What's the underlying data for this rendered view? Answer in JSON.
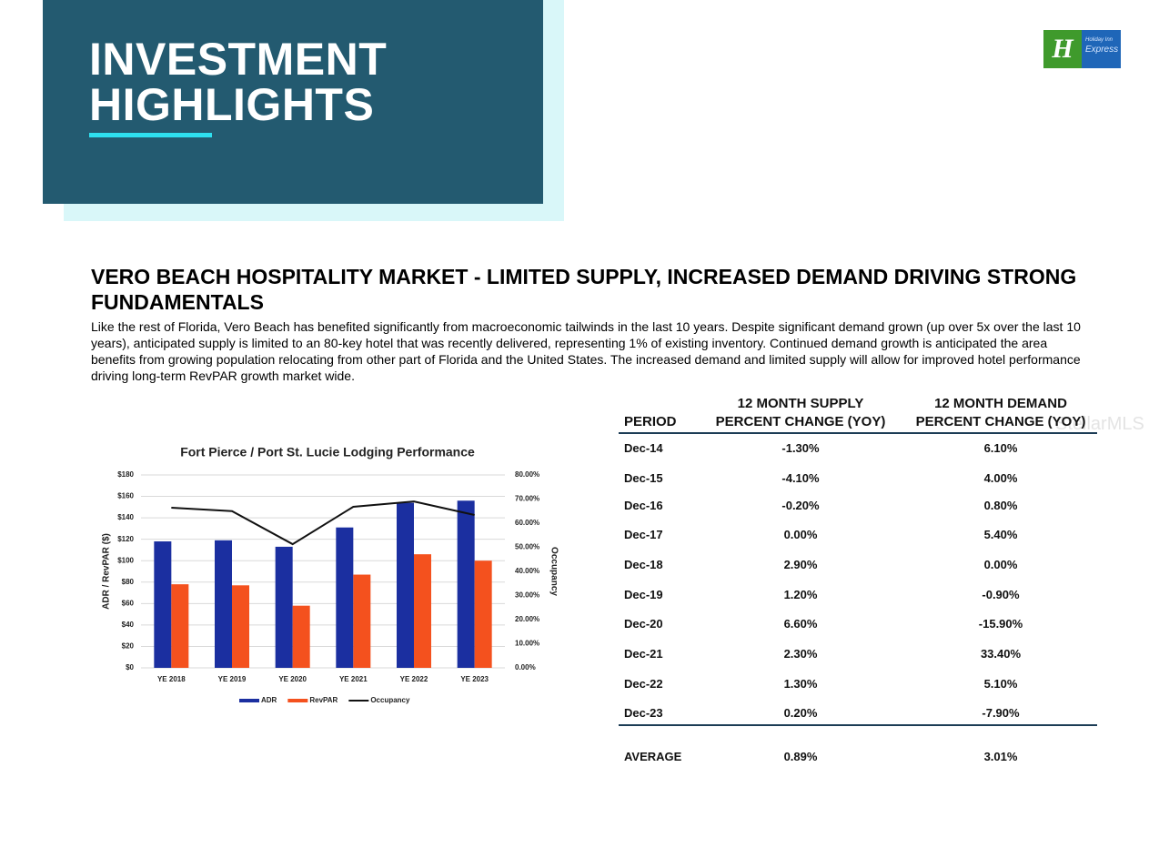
{
  "header": {
    "title_lines": [
      "INVESTMENT",
      "HIGHLIGHTS"
    ]
  },
  "logo": {
    "brand": "H",
    "lines": [
      "Holiday Inn",
      "Express"
    ]
  },
  "section": {
    "title": "VERO BEACH HOSPITALITY MARKET - LIMITED SUPPLY, INCREASED DEMAND DRIVING STRONG FUNDAMENTALS",
    "body": "Like the rest of Florida, Vero Beach has benefited significantly from macroeconomic tailwinds in the last 10 years.  Despite significant demand grown (up over 5x over the last 10 years), anticipated supply is limited to an 80-key hotel that was recently delivered, representing 1% of existing inventory.  Continued demand growth is anticipated the area benefits from growing population relocating from other part of Florida and the United States.   The increased demand and limited supply will allow for improved hotel performance driving long-term RevPAR growth market wide."
  },
  "watermark": "StellarMLS",
  "chart_data": {
    "type": "bar",
    "title": "Fort Pierce / Port St. Lucie Lodging Performance",
    "y_label": "ADR / RevPAR ($)",
    "y2_label": "Occupancy",
    "categories": [
      "YE 2018",
      "YE 2019",
      "YE 2020",
      "YE 2021",
      "YE 2022",
      "YE 2023"
    ],
    "series": [
      {
        "name": "ADR",
        "type": "bar",
        "color": "#1b2fa0",
        "values": [
          118,
          119,
          113,
          131,
          154,
          156
        ]
      },
      {
        "name": "RevPAR",
        "type": "bar",
        "color": "#f4511e",
        "values": [
          78,
          77,
          58,
          87,
          106,
          100
        ]
      },
      {
        "name": "Occupancy",
        "type": "line",
        "axis": "y2",
        "color": "#111111",
        "values": [
          66.4,
          65,
          51.3,
          66.8,
          69,
          63.4
        ]
      }
    ],
    "ylim": [
      0,
      180
    ],
    "yticks": [
      {
        "value": 0,
        "label": "$0"
      },
      {
        "value": 20,
        "label": "$20"
      },
      {
        "value": 40,
        "label": "$40"
      },
      {
        "value": 60,
        "label": "$60"
      },
      {
        "value": 80,
        "label": "$80"
      },
      {
        "value": 100,
        "label": "$100"
      },
      {
        "value": 120,
        "label": "$120"
      },
      {
        "value": 140,
        "label": "$140"
      },
      {
        "value": 160,
        "label": "$160"
      },
      {
        "value": 180,
        "label": "$180"
      }
    ],
    "y2lim": [
      0,
      80
    ],
    "y2ticks": [
      {
        "value": 0,
        "label": "0.00%"
      },
      {
        "value": 10,
        "label": "10.00%"
      },
      {
        "value": 20,
        "label": "20.00%"
      },
      {
        "value": 30,
        "label": "30.00%"
      },
      {
        "value": 40,
        "label": "40.00%"
      },
      {
        "value": 50,
        "label": "50.00%"
      },
      {
        "value": 60,
        "label": "60.00%"
      },
      {
        "value": 70,
        "label": "70.00%"
      },
      {
        "value": 80,
        "label": "80.00%"
      }
    ],
    "grid": true
  },
  "table": {
    "header": [
      [
        "PERIOD"
      ],
      [
        "12 MONTH SUPPLY",
        "PERCENT CHANGE (YOY)"
      ],
      [
        "12 MONTH DEMAND",
        "PERCENT CHANGE (YOY)"
      ]
    ],
    "rows": [
      [
        "Dec-14",
        "-1.30%",
        "6.10%"
      ],
      [
        "Dec-15",
        "-4.10%",
        "4.00%"
      ],
      [
        "Dec-16",
        "-0.20%",
        "0.80%"
      ],
      [
        "Dec-17",
        "0.00%",
        "5.40%"
      ],
      [
        "Dec-18",
        "2.90%",
        "0.00%"
      ],
      [
        "Dec-19",
        "1.20%",
        "-0.90%"
      ],
      [
        "Dec-20",
        "6.60%",
        "-15.90%"
      ],
      [
        "Dec-21",
        "2.30%",
        "33.40%"
      ],
      [
        "Dec-22",
        "1.30%",
        "5.10%"
      ],
      [
        "Dec-23",
        "0.20%",
        "-7.90%"
      ]
    ],
    "footer": [
      "AVERAGE",
      "0.89%",
      "3.01%"
    ]
  }
}
